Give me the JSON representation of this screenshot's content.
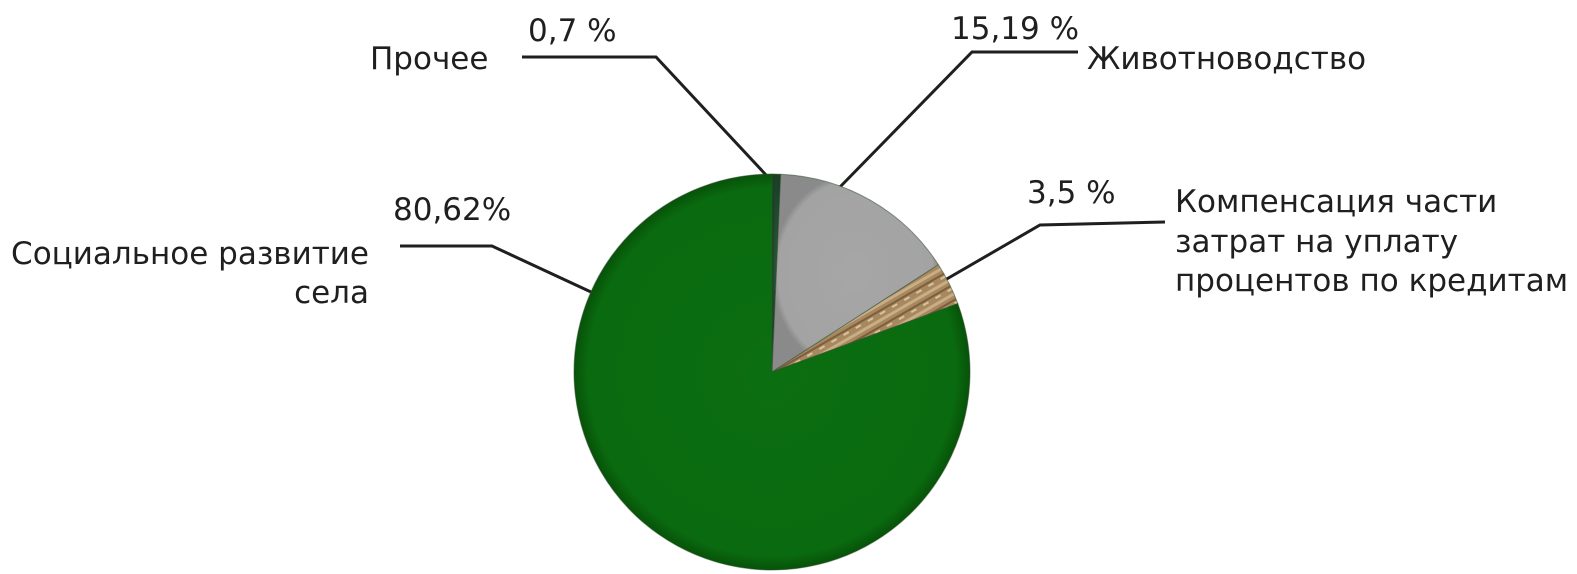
{
  "chart_data": {
    "type": "pie",
    "title": "",
    "slices": [
      {
        "name": "Прочее",
        "value": 0.7,
        "value_label": "0,7 %",
        "color": "#1f4a2c"
      },
      {
        "name": "Животноводство",
        "value": 15.19,
        "value_label": "15,19 %",
        "color": "#a3a3a3"
      },
      {
        "name": "Компенсация части затрат на уплату процентов по кредитам",
        "value": 3.5,
        "value_label": "3,5 %",
        "color": "#a08058"
      },
      {
        "name": "Социальное развитие села",
        "value": 80.62,
        "value_label": "80,62%",
        "color": "#0a6a0f"
      }
    ],
    "category_label_lines": [
      [
        "Прочее"
      ],
      [
        "Животноводство"
      ],
      [
        "Компенсация части",
        "затрат на уплату",
        "процентов по кредитам"
      ],
      [
        "Социальное развитие",
        "села"
      ]
    ],
    "start_angle_deg": 0,
    "direction": "clockwise",
    "legend": "none"
  }
}
